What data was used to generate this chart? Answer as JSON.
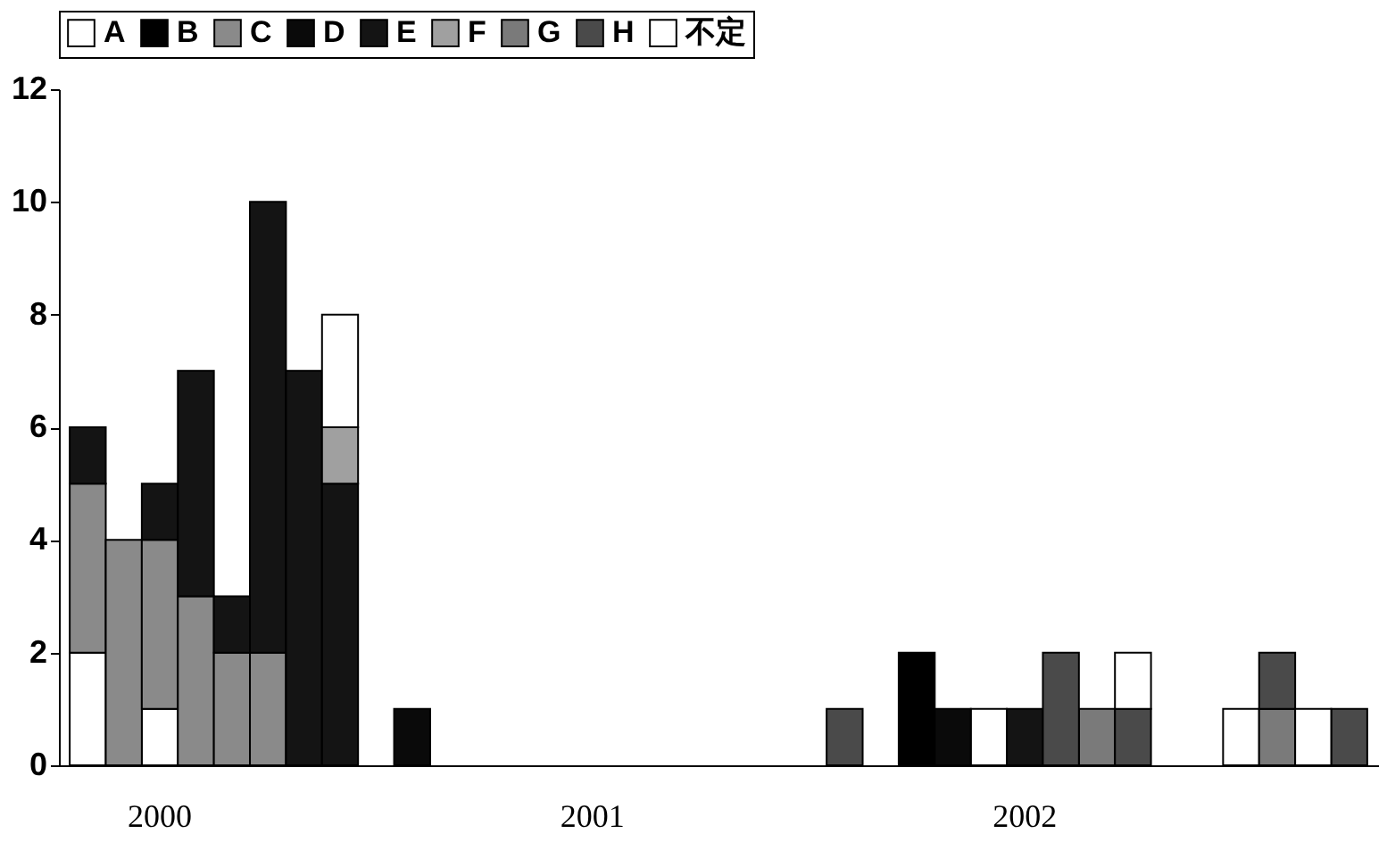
{
  "chart_data": {
    "type": "bar",
    "stacked": true,
    "categories": [
      null,
      null,
      "2000",
      null,
      null,
      null,
      null,
      null,
      null,
      null,
      null,
      null,
      null,
      null,
      "2001",
      null,
      null,
      null,
      null,
      null,
      null,
      null,
      null,
      null,
      null,
      null,
      "2002",
      null,
      null,
      null,
      null,
      null,
      null,
      null,
      null,
      null
    ],
    "series": [
      {
        "name": "A",
        "color": "#ffffff",
        "values": [
          2,
          0,
          1,
          0,
          0,
          0,
          0,
          0,
          0,
          0,
          0,
          0,
          0,
          0,
          0,
          0,
          0,
          0,
          0,
          0,
          0,
          0,
          0,
          0,
          0,
          1,
          0,
          0,
          0,
          0,
          0,
          0,
          1,
          0,
          0,
          0
        ]
      },
      {
        "name": "B",
        "color": "#000000",
        "values": [
          0,
          0,
          0,
          0,
          0,
          0,
          0,
          0,
          0,
          0,
          0,
          0,
          0,
          0,
          0,
          0,
          0,
          0,
          0,
          0,
          0,
          0,
          0,
          2,
          0,
          0,
          0,
          0,
          0,
          0,
          0,
          0,
          0,
          0,
          0,
          0
        ]
      },
      {
        "name": "C",
        "color": "#8a8a8a",
        "values": [
          3,
          4,
          3,
          3,
          2,
          2,
          0,
          0,
          0,
          0,
          0,
          0,
          0,
          0,
          0,
          0,
          0,
          0,
          0,
          0,
          0,
          0,
          0,
          0,
          0,
          0,
          0,
          0,
          0,
          0,
          0,
          0,
          0,
          0,
          0,
          0
        ]
      },
      {
        "name": "D",
        "color": "#0a0a0a",
        "values": [
          0,
          0,
          0,
          0,
          0,
          0,
          0,
          0,
          0,
          1,
          0,
          0,
          0,
          0,
          0,
          0,
          0,
          0,
          0,
          0,
          0,
          0,
          0,
          0,
          1,
          0,
          0,
          0,
          0,
          0,
          0,
          0,
          0,
          0,
          0,
          0
        ]
      },
      {
        "name": "E",
        "color": "#141414",
        "values": [
          1,
          0,
          1,
          4,
          1,
          8,
          7,
          5,
          0,
          0,
          0,
          0,
          0,
          0,
          0,
          0,
          0,
          0,
          0,
          0,
          0,
          0,
          0,
          0,
          0,
          0,
          1,
          0,
          0,
          0,
          0,
          0,
          0,
          0,
          0,
          0
        ]
      },
      {
        "name": "F",
        "color": "#a0a0a0",
        "values": [
          0,
          0,
          0,
          0,
          0,
          0,
          0,
          1,
          0,
          0,
          0,
          0,
          0,
          0,
          0,
          0,
          0,
          0,
          0,
          0,
          0,
          0,
          0,
          0,
          0,
          0,
          0,
          0,
          0,
          0,
          0,
          0,
          0,
          0,
          0,
          0
        ]
      },
      {
        "name": "G",
        "color": "#7a7a7a",
        "values": [
          0,
          0,
          0,
          0,
          0,
          0,
          0,
          0,
          0,
          0,
          0,
          0,
          0,
          0,
          0,
          0,
          0,
          0,
          0,
          0,
          0,
          0,
          0,
          0,
          0,
          0,
          0,
          0,
          1,
          0,
          0,
          0,
          0,
          1,
          0,
          0
        ]
      },
      {
        "name": "H",
        "color": "#4a4a4a",
        "values": [
          0,
          0,
          0,
          0,
          0,
          0,
          0,
          0,
          0,
          0,
          0,
          0,
          0,
          0,
          0,
          0,
          0,
          0,
          0,
          0,
          0,
          1,
          0,
          0,
          0,
          0,
          0,
          2,
          0,
          1,
          0,
          0,
          0,
          1,
          0,
          1
        ]
      },
      {
        "name": "不定",
        "color": "#ffffff",
        "values": [
          0,
          0,
          0,
          0,
          0,
          0,
          0,
          2,
          0,
          0,
          0,
          0,
          0,
          0,
          0,
          0,
          0,
          0,
          0,
          0,
          0,
          0,
          0,
          0,
          0,
          0,
          0,
          0,
          0,
          1,
          0,
          0,
          0,
          0,
          1,
          0
        ]
      }
    ],
    "ylim": [
      0,
      12
    ],
    "yticks": [
      0,
      2,
      4,
      6,
      8,
      10,
      12
    ],
    "grid": false,
    "legend": "top"
  }
}
